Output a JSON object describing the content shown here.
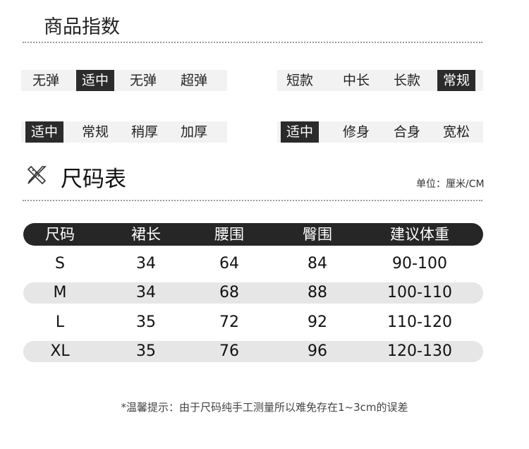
{
  "header": {
    "title": "商品指数"
  },
  "attributes": [
    {
      "options": [
        "无弹",
        "适中",
        "无弹",
        "超弹"
      ],
      "selected": 1
    },
    {
      "options": [
        "短款",
        "中长",
        "长款",
        "常规"
      ],
      "selected": 3
    },
    {
      "options": [
        "适中",
        "常规",
        "稍厚",
        "加厚"
      ],
      "selected": 0
    },
    {
      "options": [
        "适中",
        "修身",
        "合身",
        "宽松"
      ],
      "selected": 0
    }
  ],
  "size_chart": {
    "icon": "ruler-pencil-icon",
    "title": "尺码表",
    "unit": "单位：厘米/CM",
    "columns": [
      "尺码",
      "裙长",
      "腰围",
      "臀围",
      "建议体重"
    ],
    "rows": [
      [
        "S",
        "34",
        "64",
        "84",
        "90-100"
      ],
      [
        "M",
        "34",
        "68",
        "88",
        "100-110"
      ],
      [
        "L",
        "35",
        "72",
        "92",
        "110-120"
      ],
      [
        "XL",
        "35",
        "76",
        "96",
        "120-130"
      ]
    ]
  },
  "note": "*温馨提示：由于尺码纯手工测量所以难免存在1~3cm的误差",
  "colors": {
    "header_bg": "#262626",
    "shaded_row": "#e6e6e6",
    "tag_bg": "#f2f2f2",
    "tag_selected": "#2b2b2b"
  }
}
